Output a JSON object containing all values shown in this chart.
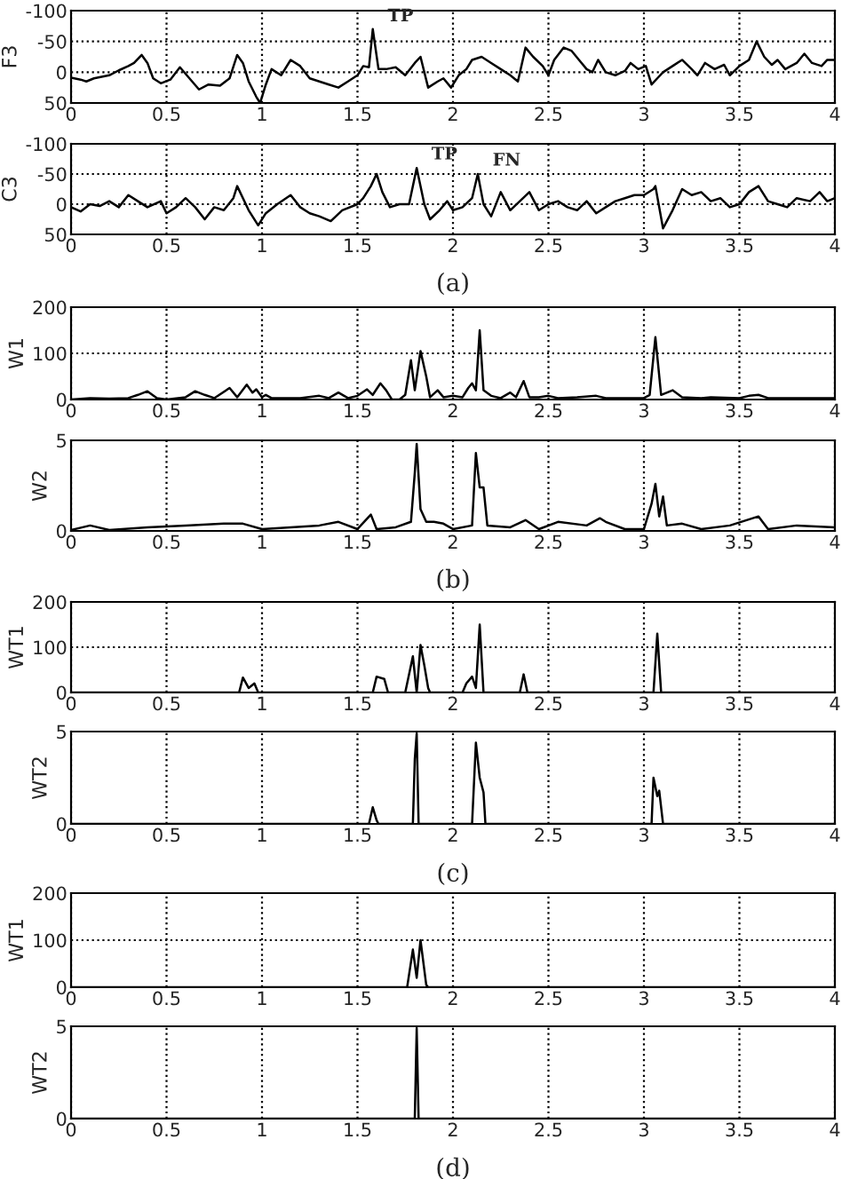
{
  "chart_data": [
    {
      "type": "line",
      "ylabel": "F3",
      "xlim": [
        0,
        4
      ],
      "ylim": [
        50,
        -100
      ],
      "xticks": [
        0,
        0.5,
        1,
        1.5,
        2,
        2.5,
        3,
        3.5,
        4
      ],
      "yticks": [
        -100,
        -50,
        0,
        50
      ],
      "grid": true,
      "line_style": "solid",
      "annotations": [
        {
          "text": "TP",
          "x": 1.58,
          "y": -69
        }
      ],
      "series": [
        {
          "color": "#000000",
          "x": [
            0,
            0.05,
            0.08,
            0.12,
            0.2,
            0.25,
            0.3,
            0.33,
            0.37,
            0.4,
            0.43,
            0.47,
            0.52,
            0.57,
            0.62,
            0.67,
            0.72,
            0.78,
            0.83,
            0.87,
            0.9,
            0.93,
            0.97,
            0.99,
            1.02,
            1.05,
            1.1,
            1.15,
            1.2,
            1.25,
            1.3,
            1.35,
            1.4,
            1.45,
            1.5,
            1.53,
            1.56,
            1.58,
            1.61,
            1.65,
            1.7,
            1.75,
            1.8,
            1.83,
            1.87,
            1.92,
            1.95,
            1.99,
            2.03,
            2.07,
            2.1,
            2.15,
            2.2,
            2.25,
            2.3,
            2.34,
            2.38,
            2.42,
            2.47,
            2.5,
            2.53,
            2.58,
            2.62,
            2.66,
            2.7,
            2.73,
            2.76,
            2.8,
            2.85,
            2.9,
            2.93,
            2.97,
            3.01,
            3.04,
            3.07,
            3.1,
            3.15,
            3.2,
            3.25,
            3.28,
            3.32,
            3.37,
            3.42,
            3.45,
            3.5,
            3.55,
            3.59,
            3.63,
            3.67,
            3.7,
            3.74,
            3.8,
            3.84,
            3.88,
            3.93,
            3.96,
            4
          ],
          "values": [
            9,
            12,
            15,
            10,
            5,
            -3,
            -10,
            -15,
            -28,
            -15,
            10,
            18,
            12,
            -8,
            10,
            28,
            20,
            22,
            10,
            -28,
            -15,
            15,
            40,
            50,
            20,
            -5,
            5,
            -20,
            -10,
            10,
            15,
            20,
            25,
            15,
            5,
            -10,
            -8,
            -70,
            -5,
            -5,
            -8,
            5,
            -15,
            -25,
            25,
            15,
            10,
            25,
            5,
            -5,
            -20,
            -25,
            -15,
            -5,
            5,
            15,
            -40,
            -25,
            -10,
            5,
            -20,
            -40,
            -35,
            -20,
            -5,
            0,
            -20,
            0,
            5,
            -2,
            -15,
            -5,
            -10,
            20,
            10,
            0,
            -10,
            -20,
            -5,
            5,
            -15,
            -5,
            -12,
            5,
            -10,
            -20,
            -50,
            -25,
            -12,
            -20,
            -5,
            -15,
            -30,
            -15,
            -10,
            -20,
            -20
          ]
        }
      ]
    },
    {
      "type": "line",
      "ylabel": "C3",
      "xlim": [
        0,
        4
      ],
      "ylim": [
        50,
        -100
      ],
      "xticks": [
        0,
        0.5,
        1,
        1.5,
        2,
        2.5,
        3,
        3.5,
        4
      ],
      "yticks": [
        -100,
        -50,
        0,
        50
      ],
      "grid": true,
      "line_style": "solid",
      "annotations": [
        {
          "text": "TP",
          "x": 1.81,
          "y": -60
        },
        {
          "text": "FN",
          "x": 2.13,
          "y": -50
        },
        "(a)"
      ],
      "series": [
        {
          "color": "#000000",
          "x": [
            0,
            0.05,
            0.1,
            0.15,
            0.2,
            0.25,
            0.3,
            0.35,
            0.4,
            0.47,
            0.5,
            0.55,
            0.6,
            0.65,
            0.7,
            0.75,
            0.8,
            0.85,
            0.87,
            0.93,
            0.98,
            1.02,
            1.08,
            1.15,
            1.2,
            1.25,
            1.3,
            1.36,
            1.42,
            1.5,
            1.53,
            1.57,
            1.6,
            1.63,
            1.67,
            1.72,
            1.77,
            1.81,
            1.85,
            1.88,
            1.93,
            1.97,
            2.0,
            2.05,
            2.1,
            2.13,
            2.16,
            2.2,
            2.25,
            2.3,
            2.35,
            2.4,
            2.45,
            2.5,
            2.55,
            2.6,
            2.65,
            2.7,
            2.75,
            2.8,
            2.85,
            2.9,
            2.95,
            3.0,
            3.05,
            3.06,
            3.1,
            3.15,
            3.2,
            3.25,
            3.3,
            3.35,
            3.4,
            3.45,
            3.5,
            3.55,
            3.6,
            3.65,
            3.7,
            3.75,
            3.8,
            3.87,
            3.92,
            3.96,
            4
          ],
          "values": [
            5,
            12,
            0,
            3,
            -5,
            5,
            -15,
            -5,
            5,
            -5,
            15,
            5,
            -10,
            5,
            25,
            5,
            10,
            -10,
            -30,
            10,
            35,
            15,
            0,
            -15,
            5,
            15,
            20,
            28,
            10,
            0,
            -10,
            -30,
            -50,
            -20,
            5,
            0,
            0,
            -60,
            0,
            25,
            10,
            -5,
            10,
            5,
            -10,
            -50,
            0,
            20,
            -20,
            10,
            -5,
            -20,
            10,
            0,
            -5,
            5,
            10,
            -5,
            15,
            5,
            -5,
            -10,
            -15,
            -15,
            -25,
            -30,
            40,
            10,
            -25,
            -15,
            -20,
            -5,
            -10,
            5,
            0,
            -20,
            -30,
            -5,
            0,
            5,
            -10,
            -5,
            -20,
            -5,
            -10
          ]
        }
      ]
    },
    {
      "type": "line",
      "ylabel": "W1",
      "xlim": [
        0,
        4
      ],
      "ylim": [
        0,
        200
      ],
      "xticks": [
        0,
        0.5,
        1,
        1.5,
        2,
        2.5,
        3,
        3.5,
        4
      ],
      "yticks": [
        0,
        100,
        200
      ],
      "grid": true,
      "line_style": "solid",
      "series": [
        {
          "color": "#000000",
          "x": [
            0,
            0.1,
            0.2,
            0.3,
            0.35,
            0.4,
            0.45,
            0.5,
            0.6,
            0.65,
            0.7,
            0.75,
            0.83,
            0.87,
            0.92,
            0.95,
            0.97,
            1.0,
            1.02,
            1.05,
            1.2,
            1.3,
            1.35,
            1.4,
            1.45,
            1.5,
            1.55,
            1.58,
            1.62,
            1.65,
            1.68,
            1.72,
            1.75,
            1.78,
            1.8,
            1.83,
            1.86,
            1.88,
            1.92,
            1.95,
            2.0,
            2.05,
            2.08,
            2.1,
            2.12,
            2.14,
            2.16,
            2.2,
            2.25,
            2.3,
            2.33,
            2.37,
            2.4,
            2.45,
            2.5,
            2.55,
            2.65,
            2.75,
            2.8,
            2.9,
            3.0,
            3.03,
            3.06,
            3.09,
            3.15,
            3.2,
            3.3,
            3.35,
            3.5,
            3.55,
            3.6,
            3.65,
            3.8,
            4
          ],
          "values": [
            0,
            3,
            2,
            3,
            10,
            18,
            3,
            0,
            5,
            18,
            10,
            3,
            25,
            5,
            32,
            15,
            22,
            5,
            10,
            3,
            3,
            8,
            3,
            15,
            3,
            8,
            22,
            10,
            35,
            20,
            0,
            0,
            10,
            85,
            20,
            105,
            50,
            5,
            20,
            5,
            8,
            5,
            25,
            35,
            20,
            150,
            20,
            8,
            3,
            15,
            5,
            40,
            5,
            5,
            8,
            3,
            5,
            8,
            3,
            3,
            3,
            10,
            135,
            10,
            20,
            5,
            3,
            5,
            3,
            8,
            10,
            3,
            3,
            3
          ]
        }
      ]
    },
    {
      "type": "line",
      "ylabel": "W2",
      "xlim": [
        0,
        4
      ],
      "ylim": [
        0,
        5
      ],
      "xticks": [
        0,
        0.5,
        1,
        1.5,
        2,
        2.5,
        3,
        3.5,
        4
      ],
      "yticks": [
        0,
        5
      ],
      "grid": true,
      "line_style": "solid",
      "annotations": [
        "(b)"
      ],
      "series": [
        {
          "color": "#000000",
          "x": [
            0,
            0.1,
            0.2,
            0.4,
            0.6,
            0.8,
            0.9,
            1.0,
            1.3,
            1.4,
            1.5,
            1.57,
            1.6,
            1.7,
            1.78,
            1.8,
            1.81,
            1.83,
            1.86,
            1.9,
            1.95,
            2.0,
            2.1,
            2.12,
            2.14,
            2.16,
            2.18,
            2.3,
            2.38,
            2.45,
            2.55,
            2.7,
            2.77,
            2.8,
            2.9,
            3.0,
            3.04,
            3.06,
            3.08,
            3.1,
            3.12,
            3.2,
            3.3,
            3.45,
            3.6,
            3.65,
            3.8,
            4
          ],
          "values": [
            0.05,
            0.3,
            0.05,
            0.2,
            0.3,
            0.4,
            0.4,
            0.1,
            0.3,
            0.5,
            0.1,
            0.9,
            0.1,
            0.2,
            0.5,
            3.2,
            4.8,
            1.2,
            0.5,
            0.5,
            0.4,
            0.1,
            0.3,
            4.3,
            2.4,
            2.4,
            0.3,
            0.2,
            0.6,
            0.1,
            0.5,
            0.3,
            0.7,
            0.5,
            0.1,
            0.1,
            1.5,
            2.6,
            0.8,
            1.9,
            0.3,
            0.4,
            0.1,
            0.3,
            0.8,
            0.1,
            0.3,
            0.2
          ]
        }
      ]
    },
    {
      "type": "line",
      "ylabel": "WT1",
      "xlim": [
        0,
        4
      ],
      "ylim": [
        0,
        200
      ],
      "xticks": [
        0,
        0.5,
        1,
        1.5,
        2,
        2.5,
        3,
        3.5,
        4
      ],
      "yticks": [
        0,
        100,
        200
      ],
      "grid": true,
      "line_style": "solid",
      "series": [
        {
          "color": "#000000",
          "x": [
            0,
            0.88,
            0.9,
            0.93,
            0.96,
            0.98,
            1.58,
            1.6,
            1.64,
            1.66,
            1.75,
            1.79,
            1.81,
            1.83,
            1.85,
            1.87,
            1.88,
            2.05,
            2.07,
            2.1,
            2.12,
            2.14,
            2.16,
            2.35,
            2.37,
            2.39,
            3.05,
            3.07,
            3.09,
            4
          ],
          "values": [
            0,
            0,
            33,
            10,
            20,
            0,
            0,
            35,
            30,
            0,
            0,
            80,
            0,
            105,
            60,
            10,
            0,
            0,
            20,
            35,
            10,
            150,
            0,
            0,
            40,
            0,
            0,
            130,
            0,
            0
          ]
        }
      ]
    },
    {
      "type": "line",
      "ylabel": "WT2",
      "xlim": [
        0,
        4
      ],
      "ylim": [
        0,
        5
      ],
      "xticks": [
        0,
        0.5,
        1,
        1.5,
        2,
        2.5,
        3,
        3.5,
        4
      ],
      "yticks": [
        0,
        5
      ],
      "grid": true,
      "line_style": "solid",
      "annotations": [
        "(c)"
      ],
      "series": [
        {
          "color": "#000000",
          "x": [
            0,
            1.56,
            1.58,
            1.6,
            1.61,
            1.79,
            1.8,
            1.81,
            1.82,
            2.1,
            2.12,
            2.14,
            2.16,
            2.17,
            3.04,
            3.05,
            3.07,
            3.08,
            3.1,
            4
          ],
          "values": [
            0,
            0,
            0.9,
            0.2,
            0,
            0,
            3.5,
            4.9,
            0,
            0,
            4.4,
            2.5,
            1.7,
            0,
            0,
            2.5,
            1.5,
            1.8,
            0,
            0
          ]
        }
      ]
    },
    {
      "type": "line",
      "ylabel": "WT1",
      "xlim": [
        0,
        4
      ],
      "ylim": [
        0,
        200
      ],
      "xticks": [
        0,
        0.5,
        1,
        1.5,
        2,
        2.5,
        3,
        3.5,
        4
      ],
      "yticks": [
        0,
        100,
        200
      ],
      "grid": true,
      "line_style": "solid",
      "series": [
        {
          "color": "#000000",
          "x": [
            0,
            1.76,
            1.79,
            1.81,
            1.83,
            1.86,
            1.87,
            4
          ],
          "values": [
            0,
            0,
            80,
            20,
            100,
            5,
            0,
            0
          ]
        }
      ]
    },
    {
      "type": "line",
      "ylabel": "WT2",
      "xlim": [
        0,
        4
      ],
      "ylim": [
        0,
        5
      ],
      "xticks": [
        0,
        0.5,
        1,
        1.5,
        2,
        2.5,
        3,
        3.5,
        4
      ],
      "yticks": [
        0,
        5
      ],
      "grid": true,
      "line_style": "solid",
      "annotations": [
        "(d)"
      ],
      "series": [
        {
          "color": "#000000",
          "x": [
            0,
            1.8,
            1.81,
            1.82,
            4
          ],
          "values": [
            0,
            0,
            4.9,
            0,
            0
          ]
        }
      ]
    }
  ]
}
